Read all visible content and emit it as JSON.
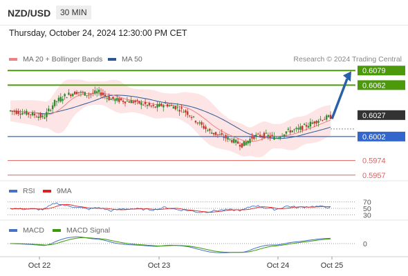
{
  "header": {
    "pair": "NZD/USD",
    "timeframe": "30 MIN"
  },
  "datetime": "Thursday, October 24, 2024 12:30:00 PM CET",
  "legend": {
    "ma20": "MA 20 + Bollinger Bands",
    "ma50": "MA 50",
    "copyright": "Research © 2024 Trading Central",
    "rsi": "RSI",
    "rsi_ma": "9MA",
    "macd": "MACD",
    "macd_signal": "MACD Signal"
  },
  "colors": {
    "ma20": "#f08080",
    "ma50": "#2b5797",
    "resistance": "#4c9a0c",
    "pivot": "#3366cc",
    "support": "#e06060",
    "candle_up": "#2e8b2e",
    "candle_down": "#c0392b",
    "current": "#333333",
    "arrow": "#2b5fa8"
  },
  "chart_data": {
    "type": "candlestick",
    "pair": "NZD/USD",
    "interval": "30 MIN",
    "y_range": [
      0.5952,
      0.6084
    ],
    "x_ticks": [
      "Oct 22",
      "Oct 23",
      "Oct 24",
      "Oct 25"
    ],
    "price_levels": [
      {
        "label": "0.6079",
        "value": 0.6079,
        "kind": "resistance"
      },
      {
        "label": "0.6062",
        "value": 0.6062,
        "kind": "resistance"
      },
      {
        "label": "0.6027",
        "value": 0.6027,
        "kind": "current"
      },
      {
        "label": "0.6002",
        "value": 0.6002,
        "kind": "pivot"
      },
      {
        "label": "0.5974",
        "value": 0.5974,
        "kind": "support"
      },
      {
        "label": "0.5957",
        "value": 0.5957,
        "kind": "support"
      }
    ],
    "price_path": [
      0.6032,
      0.603,
      0.6028,
      0.6024,
      0.6042,
      0.605,
      0.6054,
      0.6051,
      0.6054,
      0.6046,
      0.6044,
      0.6043,
      0.604,
      0.6036,
      0.604,
      0.6036,
      0.603,
      0.6018,
      0.6008,
      0.6003,
      0.5998,
      0.5992,
      0.6002,
      0.6004,
      0.6,
      0.6008,
      0.601,
      0.6016,
      0.6022,
      0.6025
    ],
    "forecast_target": 0.6079,
    "rsi_levels": [
      70,
      50,
      30
    ],
    "macd_zero": 0
  }
}
